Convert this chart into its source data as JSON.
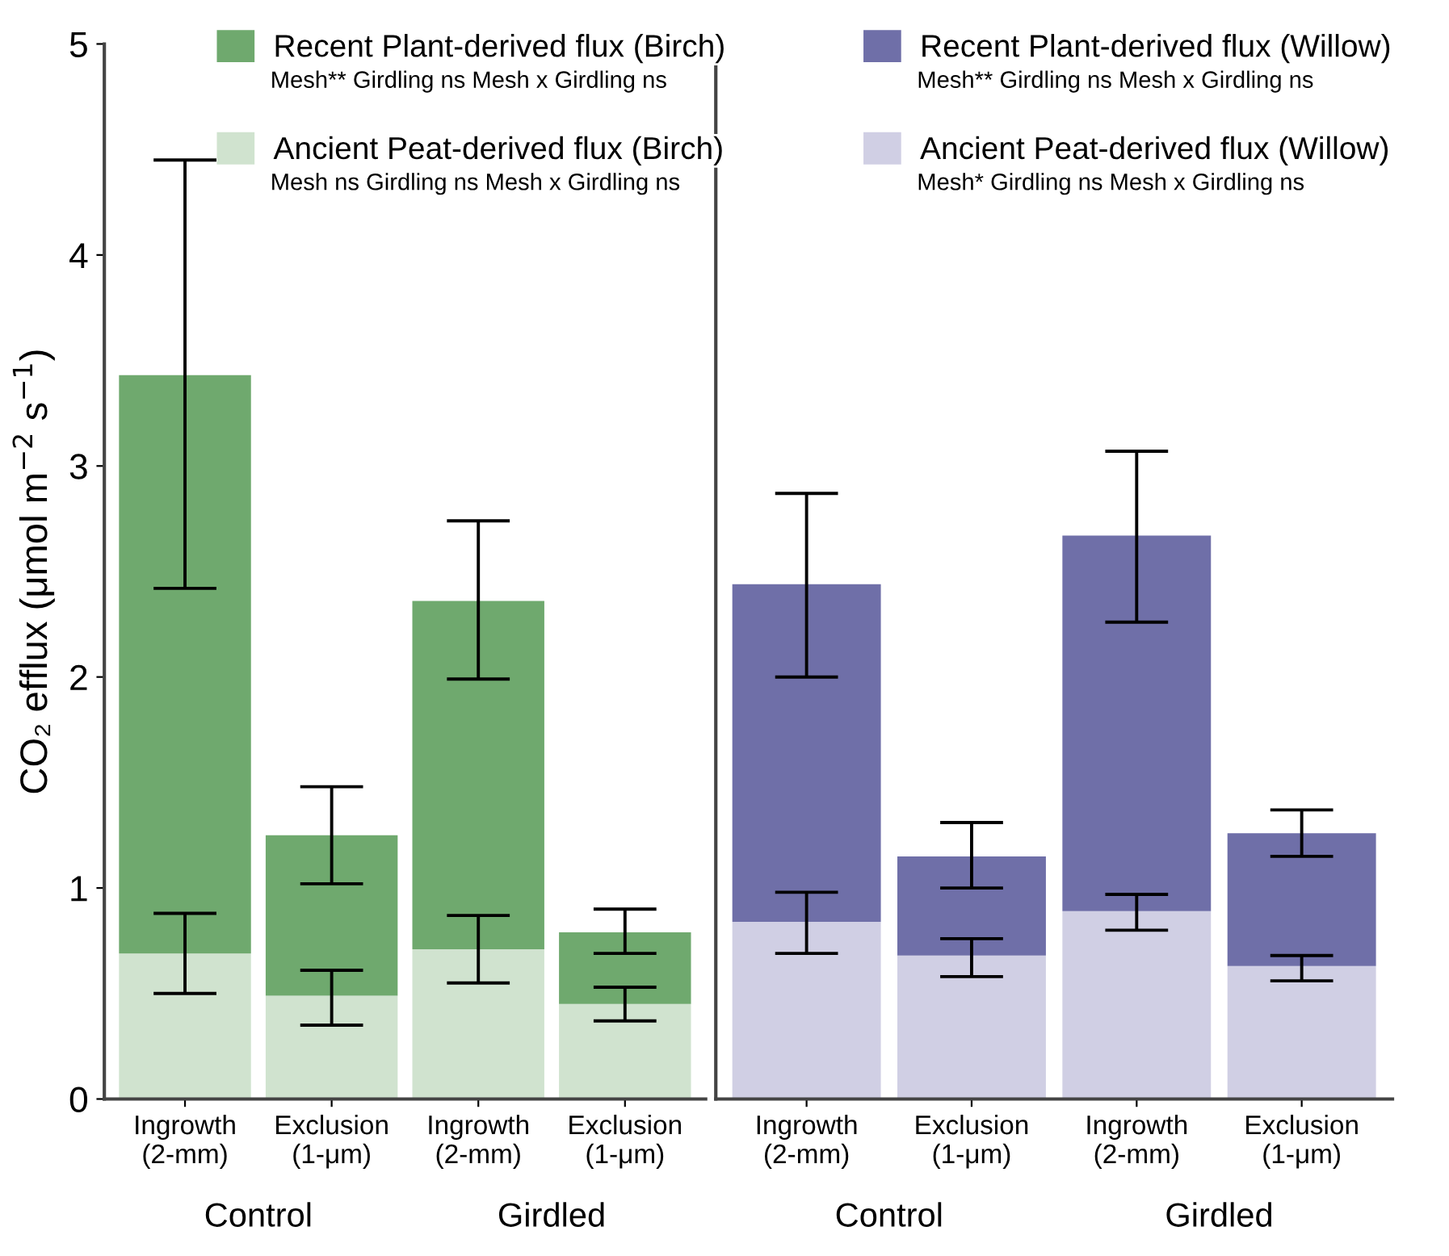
{
  "chart_data": [
    {
      "type": "bar",
      "stacked": true,
      "ylabel": "CO₂ efflux (μmol m$^{−2}$ s$^{−1}$)",
      "categories": [
        "Ingrowth\n(2-mm)",
        "Exclusion\n(1-μm)",
        "Ingrowth\n(2-mm)",
        "Exclusion\n(1-μm)"
      ],
      "ylim": [
        0,
        5
      ],
      "yticks": [
        0,
        1,
        2,
        3,
        4,
        5
      ],
      "legend": "top right",
      "grid": false,
      "series": [
        {
          "name": "Ancient Peat-derived flux (Birch)",
          "color": "#d0e3cf",
          "values": [
            0.69,
            0.49,
            0.71,
            0.45
          ],
          "errors": [
            [
              0.5,
              0.88
            ],
            [
              0.35,
              0.61
            ],
            [
              0.55,
              0.87
            ],
            [
              0.37,
              0.53
            ]
          ]
        },
        {
          "name": "Recent Plant-derived flux (Birch)",
          "color": "#6fa96e",
          "values": [
            2.74,
            0.76,
            1.65,
            0.34
          ],
          "errors": [
            [
              2.42,
              4.45
            ],
            [
              1.02,
              1.48
            ],
            [
              1.99,
              2.74
            ],
            [
              0.69,
              0.9
            ]
          ]
        }
      ],
      "annotations": [
        "Control",
        "Girdled",
        "Mesh ns Girdling ns Mesh x Girdling ns",
        "Mesh** Girdling ns Mesh x Girdling ns"
      ]
    },
    {
      "type": "bar",
      "stacked": true,
      "tick_labels": "x",
      "categories": [
        "Ingrowth\n(2-mm)",
        "Exclusion\n(1-μm)",
        "Ingrowth\n(2-mm)",
        "Exclusion\n(1-μm)"
      ],
      "ylim": [
        0,
        5
      ],
      "legend": "top right",
      "grid": false,
      "series": [
        {
          "name": "Ancient Peat-derived flux (Willow)",
          "color": "#d0cfe4",
          "values": [
            0.84,
            0.68,
            0.89,
            0.63
          ],
          "errors": [
            [
              0.69,
              0.98
            ],
            [
              0.58,
              0.76
            ],
            [
              0.8,
              0.97
            ],
            [
              0.56,
              0.68
            ]
          ]
        },
        {
          "name": "Recent Plant-derived flux (Willow)",
          "color": "#6f6fa8",
          "values": [
            1.6,
            0.47,
            1.78,
            0.63
          ],
          "errors": [
            [
              2.0,
              2.87
            ],
            [
              1.0,
              1.31
            ],
            [
              2.26,
              3.07
            ],
            [
              1.15,
              1.37
            ]
          ]
        }
      ],
      "annotations": [
        "Control",
        "Girdled",
        "Mesh* Girdling ns Mesh x Girdling ns",
        "Mesh** Girdling ns Mesh x Girdling ns"
      ]
    }
  ]
}
